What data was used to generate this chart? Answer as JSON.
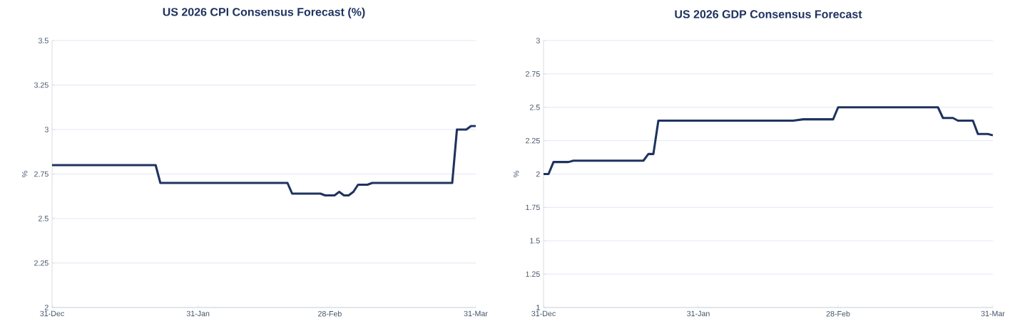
{
  "chart_data": [
    {
      "type": "line",
      "title": "US 2026 CPI Consensus Forecast (%)",
      "ylabel": "%",
      "x": [
        "2025-12-31",
        "2026-01-22",
        "2026-01-23",
        "2026-02-19",
        "2026-02-20",
        "2026-02-26",
        "2026-02-27",
        "2026-03-01",
        "2026-03-02",
        "2026-03-03",
        "2026-03-04",
        "2026-03-05",
        "2026-03-06",
        "2026-03-08",
        "2026-03-09",
        "2026-03-26",
        "2026-03-27",
        "2026-03-29",
        "2026-03-30",
        "2026-03-31"
      ],
      "series": [
        {
          "color": "#1f3360",
          "values": [
            2.8,
            2.8,
            2.7,
            2.7,
            2.64,
            2.64,
            2.63,
            2.63,
            2.65,
            2.63,
            2.63,
            2.65,
            2.69,
            2.69,
            2.7,
            2.7,
            3.0,
            3.0,
            3.02,
            3.02
          ]
        }
      ],
      "xlim": [
        "2025-12-31",
        "2026-03-31"
      ],
      "xticks": [
        {
          "value": "2025-12-31",
          "label": "31-Dec"
        },
        {
          "value": "2026-01-31",
          "label": "31-Jan"
        },
        {
          "value": "2026-02-28",
          "label": "28-Feb"
        },
        {
          "value": "2026-03-31",
          "label": "31-Mar"
        }
      ],
      "ylim": [
        2,
        3.5
      ],
      "yticks": [
        2,
        2.25,
        2.5,
        2.75,
        3,
        3.25,
        3.5
      ],
      "grid": "y"
    },
    {
      "type": "line",
      "title": "US 2026 GDP Consensus Forecast",
      "ylabel": "%",
      "x": [
        "2025-12-31",
        "2026-01-01",
        "2026-01-02",
        "2026-01-05",
        "2026-01-06",
        "2026-01-20",
        "2026-01-21",
        "2026-01-22",
        "2026-01-23",
        "2026-02-19",
        "2026-02-21",
        "2026-02-27",
        "2026-02-28",
        "2026-03-20",
        "2026-03-21",
        "2026-03-23",
        "2026-03-24",
        "2026-03-27",
        "2026-03-28",
        "2026-03-30",
        "2026-03-31"
      ],
      "series": [
        {
          "color": "#1f3360",
          "values": [
            2.0,
            2.0,
            2.09,
            2.09,
            2.1,
            2.1,
            2.15,
            2.15,
            2.4,
            2.4,
            2.41,
            2.41,
            2.5,
            2.5,
            2.42,
            2.42,
            2.4,
            2.4,
            2.3,
            2.3,
            2.29
          ]
        }
      ],
      "xlim": [
        "2025-12-31",
        "2026-03-31"
      ],
      "xticks": [
        {
          "value": "2025-12-31",
          "label": "31-Dec"
        },
        {
          "value": "2026-01-31",
          "label": "31-Jan"
        },
        {
          "value": "2026-02-28",
          "label": "28-Feb"
        },
        {
          "value": "2026-03-31",
          "label": "31-Mar"
        }
      ],
      "ylim": [
        1,
        3
      ],
      "yticks": [
        1,
        1.25,
        1.5,
        1.75,
        2,
        2.25,
        2.5,
        2.75,
        3
      ],
      "grid": "y"
    }
  ]
}
